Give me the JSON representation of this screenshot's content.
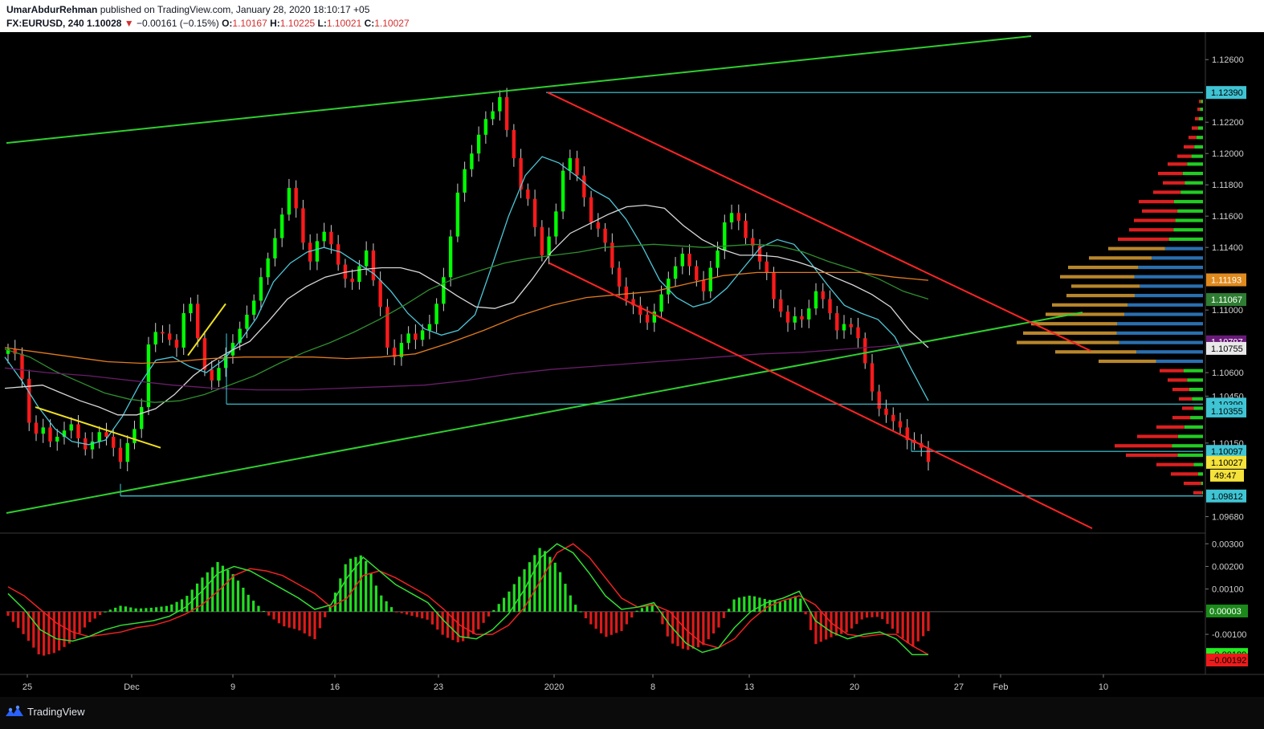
{
  "header": {
    "author": "UmarAbdurRehman",
    "published_text": " published on TradingView.com, January 28, 2020 18:10:17 +05",
    "symbol": "FX:EURUSD, 240",
    "last": " 1.10028",
    "change": " −0.00161 (−0.15%)",
    "o_label": " O:",
    "o_value": "1.10167",
    "h_label": " H:",
    "h_value": "1.10225",
    "l_label": " L:",
    "l_value": "1.10021",
    "c_label": " C:",
    "c_value": "1.10027"
  },
  "footer": {
    "brand": "TradingView"
  },
  "colors": {
    "background": "#000000",
    "bull": "#00ff00",
    "bear": "#ff1a1a",
    "trend_green": "#2fcf2f",
    "channel_red": "#ff2424",
    "support_cyan": "#40d0e0",
    "ema_teal": "#4dc7d8",
    "ma_white": "#d8d8d8",
    "ma_green": "#2f8f2f",
    "ma_orange": "#e07b20",
    "ma_purple": "#6a1e6a",
    "macd_line": "#33dd33",
    "signal_line": "#ee2222"
  },
  "chart_data": {
    "type": "candlestick",
    "title": "",
    "symbol": "FX:EURUSD",
    "timeframe": "240",
    "x_tick_labels": [
      "25",
      "Dec",
      "9",
      "16",
      "23",
      "2020",
      "8",
      "13",
      "20",
      "27",
      "Feb",
      "10"
    ],
    "y_tick_labels": [
      "1.12600",
      "1.12200",
      "1.12000",
      "1.11800",
      "1.11600",
      "1.11400",
      "1.11000",
      "1.10600",
      "1.10450",
      "1.10150",
      "1.09680"
    ],
    "ylim": [
      1.0958,
      1.1275
    ],
    "price_labels": [
      {
        "value": 1.1239,
        "text": "1.12390",
        "kind": "horizontal-line"
      },
      {
        "value": 1.11193,
        "text": "1.11193",
        "kind": "ma-orange"
      },
      {
        "value": 1.11067,
        "text": "1.11067",
        "kind": "ma-green"
      },
      {
        "value": 1.10797,
        "text": "1.10797",
        "kind": "ma-purple"
      },
      {
        "value": 1.10755,
        "text": "1.10755",
        "kind": "ma-white"
      },
      {
        "value": 1.10399,
        "text": "1.10399",
        "kind": "horizontal-line"
      },
      {
        "value": 1.10355,
        "text": "1.10355",
        "kind": "ema-teal"
      },
      {
        "value": 1.10097,
        "text": "1.10097",
        "kind": "horizontal-line"
      },
      {
        "value": 1.10027,
        "text": "1.10027",
        "kind": "last-price"
      },
      {
        "value": 1.09812,
        "text": "1.09812",
        "kind": "horizontal-line"
      }
    ],
    "countdown": "49:47",
    "price_path": [
      1.1075,
      1.1072,
      1.1056,
      1.1028,
      1.1021,
      1.1025,
      1.1016,
      1.1019,
      1.1023,
      1.1027,
      1.1018,
      1.1011,
      1.1016,
      1.1022,
      1.1019,
      1.1012,
      1.1003,
      1.1015,
      1.1024,
      1.1038,
      1.1078,
      1.1086,
      1.1085,
      1.1081,
      1.1076,
      1.1098,
      1.1104,
      1.1082,
      1.1062,
      1.1055,
      1.1063,
      1.1071,
      1.1079,
      1.1088,
      1.1097,
      1.1106,
      1.1121,
      1.1133,
      1.1146,
      1.1161,
      1.1178,
      1.1165,
      1.1143,
      1.1131,
      1.1144,
      1.115,
      1.1142,
      1.1129,
      1.112,
      1.1118,
      1.1128,
      1.1138,
      1.1119,
      1.1102,
      1.1076,
      1.107,
      1.1079,
      1.1085,
      1.1081,
      1.1087,
      1.1091,
      1.1104,
      1.1121,
      1.1147,
      1.1175,
      1.119,
      1.12,
      1.1212,
      1.1222,
      1.1227,
      1.1236,
      1.1215,
      1.1197,
      1.1177,
      1.1171,
      1.1153,
      1.1135,
      1.1147,
      1.1163,
      1.1189,
      1.1197,
      1.1186,
      1.1172,
      1.1156,
      1.1152,
      1.1143,
      1.1127,
      1.1115,
      1.1107,
      1.1103,
      1.1097,
      1.1092,
      1.1099,
      1.111,
      1.112,
      1.1128,
      1.1136,
      1.1128,
      1.1119,
      1.1112,
      1.1127,
      1.1138,
      1.1156,
      1.1162,
      1.1157,
      1.1146,
      1.1141,
      1.1131,
      1.1124,
      1.1107,
      1.1099,
      1.1092,
      1.1096,
      1.1094,
      1.1101,
      1.1112,
      1.1107,
      1.1098,
      1.1087,
      1.1091,
      1.1089,
      1.1082,
      1.1066,
      1.1048,
      1.1037,
      1.1033,
      1.1029,
      1.1025,
      1.1017,
      1.1015,
      1.1012,
      1.1003
    ],
    "moving_averages": [
      {
        "label": "ema-teal",
        "color": "ema_teal",
        "points": [
          1.107,
          1.1055,
          1.1038,
          1.1024,
          1.1016,
          1.1014,
          1.1017,
          1.1032,
          1.1052,
          1.1068,
          1.107,
          1.1064,
          1.106,
          1.1068,
          1.108,
          1.1095,
          1.1118,
          1.113,
          1.1137,
          1.114,
          1.1137,
          1.113,
          1.1123,
          1.1112,
          1.1098,
          1.1088,
          1.1084,
          1.1087,
          1.1097,
          1.1128,
          1.116,
          1.1186,
          1.1198,
          1.1194,
          1.1186,
          1.1177,
          1.1171,
          1.1158,
          1.114,
          1.1119,
          1.1108,
          1.1102,
          1.1105,
          1.1114,
          1.1127,
          1.114,
          1.1145,
          1.1142,
          1.113,
          1.1116,
          1.1103,
          1.1098,
          1.1094,
          1.1083,
          1.1062,
          1.1042
        ]
      },
      {
        "label": "ma-white",
        "color": "ma_white",
        "points": [
          1.105,
          1.1051,
          1.1052,
          1.1047,
          1.1042,
          1.1038,
          1.1033,
          1.1033,
          1.1037,
          1.1046,
          1.1058,
          1.1067,
          1.1074,
          1.108,
          1.1093,
          1.1107,
          1.1115,
          1.1121,
          1.1124,
          1.1126,
          1.1127,
          1.1127,
          1.1124,
          1.1117,
          1.1109,
          1.1102,
          1.1101,
          1.1105,
          1.112,
          1.1137,
          1.1149,
          1.1155,
          1.1161,
          1.1166,
          1.1167,
          1.1165,
          1.1154,
          1.1145,
          1.1139,
          1.1135,
          1.1135,
          1.1134,
          1.1131,
          1.1127,
          1.1121,
          1.1116,
          1.111,
          1.1102,
          1.1087,
          1.1076
        ]
      },
      {
        "label": "ma-green",
        "color": "ma_green",
        "points": [
          1.1075,
          1.107,
          1.1061,
          1.1054,
          1.1047,
          1.1043,
          1.1041,
          1.1042,
          1.1046,
          1.1052,
          1.1058,
          1.1066,
          1.1073,
          1.1079,
          1.1086,
          1.1094,
          1.1103,
          1.1113,
          1.112,
          1.1125,
          1.113,
          1.1133,
          1.1135,
          1.1137,
          1.114,
          1.1141,
          1.1142,
          1.1141,
          1.114,
          1.1141,
          1.1142,
          1.1141,
          1.1137,
          1.1131,
          1.1126,
          1.112,
          1.1112,
          1.1107
        ]
      },
      {
        "label": "ma-orange",
        "color": "ma_orange",
        "points": [
          1.1076,
          1.1073,
          1.107,
          1.1067,
          1.1066,
          1.1067,
          1.1069,
          1.107,
          1.107,
          1.107,
          1.1069,
          1.107,
          1.1072,
          1.1079,
          1.1087,
          1.1096,
          1.1103,
          1.1108,
          1.111,
          1.1112,
          1.1117,
          1.1122,
          1.1124,
          1.1124,
          1.1124,
          1.1124,
          1.1121,
          1.1119
        ]
      },
      {
        "label": "ma-purple",
        "color": "ma_purple",
        "points": [
          1.1063,
          1.106,
          1.1058,
          1.1055,
          1.1052,
          1.105,
          1.1049,
          1.1049,
          1.105,
          1.1051,
          1.1052,
          1.1055,
          1.1059,
          1.1062,
          1.1064,
          1.1066,
          1.1068,
          1.107,
          1.1072,
          1.1073,
          1.1075,
          1.1077,
          1.108
        ]
      }
    ],
    "volume_profile": [
      {
        "price": 1.1233,
        "total": 5,
        "up_share": 0.5
      },
      {
        "price": 1.1228,
        "total": 7,
        "up_share": 0.5
      },
      {
        "price": 1.1222,
        "total": 10,
        "up_share": 0.5
      },
      {
        "price": 1.1216,
        "total": 14,
        "up_share": 0.45
      },
      {
        "price": 1.121,
        "total": 18,
        "up_share": 0.45
      },
      {
        "price": 1.1204,
        "total": 24,
        "up_share": 0.45
      },
      {
        "price": 1.1198,
        "total": 32,
        "up_share": 0.45
      },
      {
        "price": 1.1193,
        "total": 44,
        "up_share": 0.45
      },
      {
        "price": 1.1187,
        "total": 56,
        "up_share": 0.45
      },
      {
        "price": 1.1181,
        "total": 50,
        "up_share": 0.45
      },
      {
        "price": 1.1175,
        "total": 62,
        "up_share": 0.45
      },
      {
        "price": 1.1169,
        "total": 80,
        "up_share": 0.45
      },
      {
        "price": 1.1163,
        "total": 76,
        "up_share": 0.42
      },
      {
        "price": 1.1157,
        "total": 86,
        "up_share": 0.4
      },
      {
        "price": 1.1151,
        "total": 92,
        "up_share": 0.4
      },
      {
        "price": 1.1145,
        "total": 106,
        "up_share": 0.4
      },
      {
        "price": 1.1139,
        "total": 118,
        "up_share": 0.4
      },
      {
        "price": 1.1133,
        "total": 142,
        "up_share": 0.45
      },
      {
        "price": 1.1127,
        "total": 168,
        "up_share": 0.48
      },
      {
        "price": 1.1121,
        "total": 178,
        "up_share": 0.48
      },
      {
        "price": 1.1115,
        "total": 164,
        "up_share": 0.48
      },
      {
        "price": 1.1109,
        "total": 170,
        "up_share": 0.5
      },
      {
        "price": 1.1103,
        "total": 188,
        "up_share": 0.5
      },
      {
        "price": 1.1097,
        "total": 196,
        "up_share": 0.5
      },
      {
        "price": 1.1091,
        "total": 214,
        "up_share": 0.5
      },
      {
        "price": 1.1085,
        "total": 224,
        "up_share": 0.48
      },
      {
        "price": 1.1079,
        "total": 232,
        "up_share": 0.45
      },
      {
        "price": 1.1073,
        "total": 184,
        "up_share": 0.45
      },
      {
        "price": 1.1067,
        "total": 130,
        "up_share": 0.45
      },
      {
        "price": 1.1061,
        "total": 54,
        "up_share": 0.45
      },
      {
        "price": 1.1055,
        "total": 44,
        "up_share": 0.45
      },
      {
        "price": 1.1049,
        "total": 38,
        "up_share": 0.45
      },
      {
        "price": 1.1043,
        "total": 30,
        "up_share": 0.45
      },
      {
        "price": 1.1037,
        "total": 26,
        "up_share": 0.45
      },
      {
        "price": 1.1031,
        "total": 38,
        "up_share": 0.42
      },
      {
        "price": 1.1025,
        "total": 58,
        "up_share": 0.4
      },
      {
        "price": 1.1019,
        "total": 82,
        "up_share": 0.38
      },
      {
        "price": 1.1013,
        "total": 110,
        "up_share": 0.35
      },
      {
        "price": 1.1007,
        "total": 96,
        "up_share": 0.33
      },
      {
        "price": 1.1001,
        "total": 58,
        "up_share": 0.2
      },
      {
        "price": 1.0995,
        "total": 40,
        "up_share": 0.15
      },
      {
        "price": 1.0989,
        "total": 24,
        "up_share": 0.1
      },
      {
        "price": 1.0983,
        "total": 12,
        "up_share": 0.1
      }
    ],
    "volume_profile_value_area": [
      1.1067,
      1.1139
    ],
    "macd": {
      "y_tick_labels": [
        "0.00300",
        "0.00200",
        "0.00100",
        "-0.00100"
      ],
      "ylim": [
        -0.0027,
        0.0034
      ],
      "zero": 0,
      "value_labels": [
        {
          "value": 3e-05,
          "text": "0.00003",
          "kind": "histogram"
        },
        {
          "value": -0.00189,
          "text": "−0.00189",
          "kind": "macd"
        },
        {
          "value": -0.00192,
          "text": "−0.00192",
          "kind": "signal"
        }
      ],
      "macd_line": [
        0.0008,
        0.0001,
        -0.0008,
        -0.0012,
        -0.0013,
        -0.0011,
        -0.0008,
        -0.0006,
        -0.0005,
        -0.0004,
        -0.0002,
        0.0002,
        0.0009,
        0.0017,
        0.002,
        0.0018,
        0.0014,
        0.001,
        0.0006,
        0.0001,
        0.0003,
        0.0015,
        0.0024,
        0.0018,
        0.0012,
        0.0008,
        0.0004,
        -0.0004,
        -0.0011,
        -0.0012,
        -0.0008,
        -0.0001,
        0.001,
        0.0024,
        0.003,
        0.0026,
        0.0017,
        0.0007,
        0.0001,
        0.0002,
        0.0004,
        -0.0006,
        -0.0014,
        -0.0018,
        -0.0016,
        -0.0007,
        0.0,
        0.0004,
        0.0006,
        0.0009,
        -0.0004,
        -0.0009,
        -0.0012,
        -0.001,
        -0.0009,
        -0.0012,
        -0.0019,
        -0.0019
      ],
      "signal_line": [
        0.0011,
        0.0007,
        0.0001,
        -0.0005,
        -0.0009,
        -0.0011,
        -0.001,
        -0.0009,
        -0.0007,
        -0.0006,
        -0.0004,
        -0.0001,
        0.0003,
        0.0009,
        0.0016,
        0.0019,
        0.0018,
        0.0016,
        0.0012,
        0.0008,
        0.0002,
        0.0006,
        0.0016,
        0.0018,
        0.0015,
        0.0011,
        0.0007,
        0.0001,
        -0.0006,
        -0.001,
        -0.001,
        -0.0006,
        0.0002,
        0.0014,
        0.0026,
        0.003,
        0.0024,
        0.0015,
        0.0006,
        0.0002,
        0.0003,
        0.0,
        -0.0008,
        -0.0014,
        -0.0016,
        -0.0012,
        -0.0004,
        0.0002,
        0.0005,
        0.0007,
        0.0003,
        -0.0005,
        -0.001,
        -0.0011,
        -0.001,
        -0.001,
        -0.0015,
        -0.0019
      ]
    }
  }
}
